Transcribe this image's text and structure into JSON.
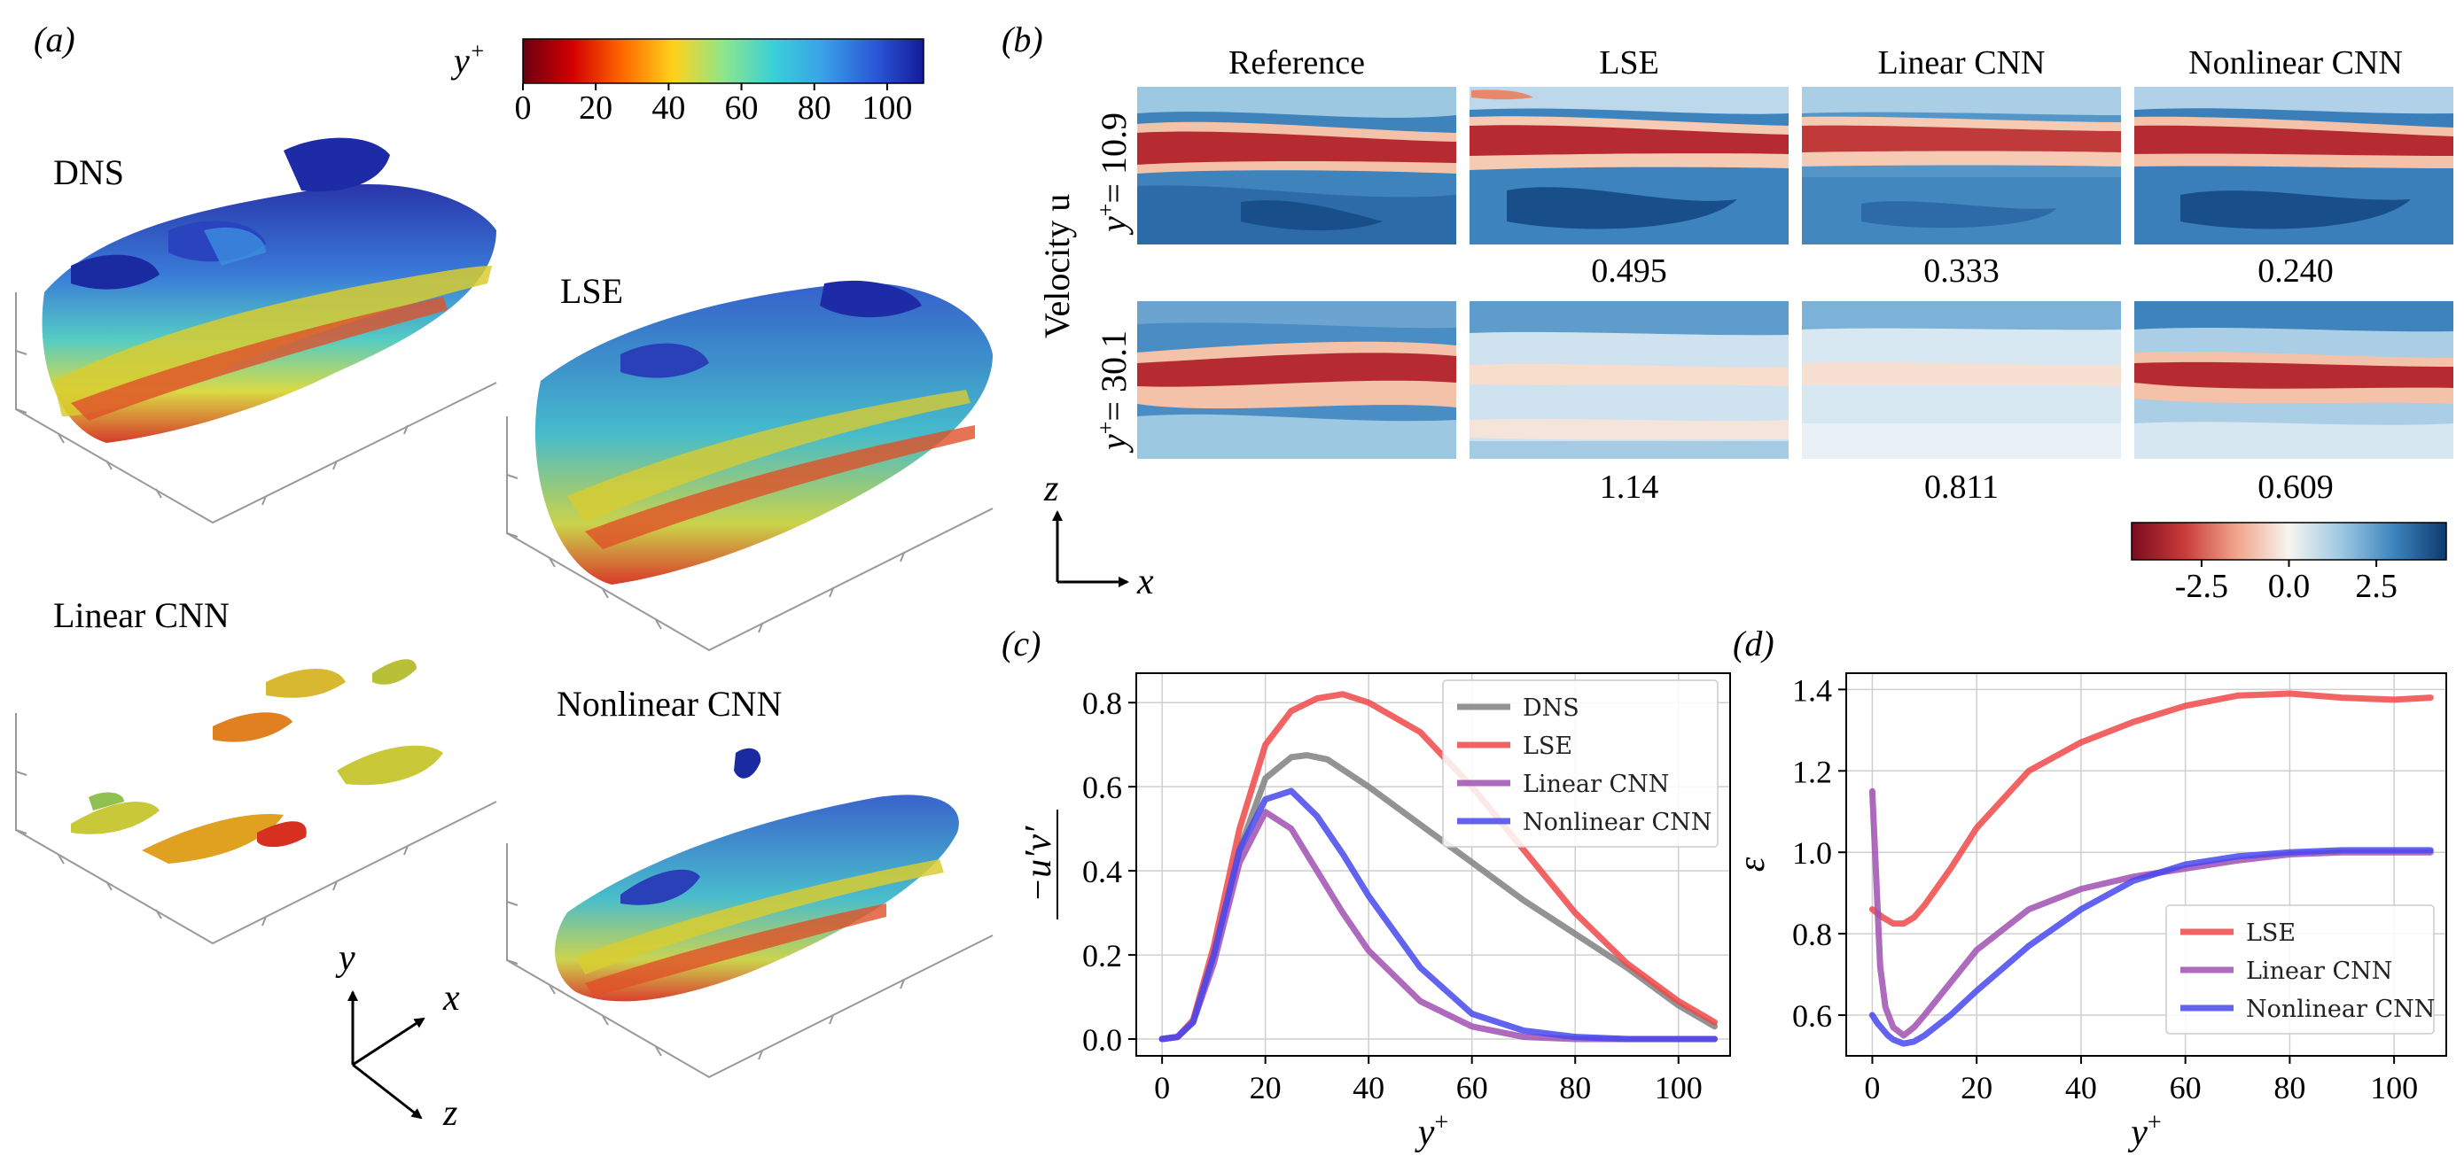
{
  "panel_a": {
    "label": "(a)",
    "colorbar": {
      "symbol": "y",
      "superscript": "+",
      "ticks": [
        "0",
        "20",
        "40",
        "60",
        "80",
        "100"
      ],
      "colors": [
        "#6a0010",
        "#d40000",
        "#ff6a00",
        "#ffd21a",
        "#8ee68a",
        "#3ad0d8",
        "#3aa0e8",
        "#2a5ad8",
        "#141a9a"
      ]
    },
    "views": [
      "DNS",
      "LSE",
      "Linear CNN",
      "Nonlinear CNN"
    ],
    "axes": {
      "y": "y",
      "x": "x",
      "z": "z"
    }
  },
  "panel_b": {
    "label": "(b)",
    "columns": [
      "Reference",
      "LSE",
      "Linear CNN",
      "Nonlinear CNN"
    ],
    "row_title": "Velocity u",
    "rows": [
      {
        "label_prefix": "y",
        "label_sup": "+",
        "label_value": "= 10.9",
        "errors": [
          "0.495",
          "0.333",
          "0.240"
        ]
      },
      {
        "label_prefix": "y",
        "label_sup": "+",
        "label_value": "= 30.1",
        "errors": [
          "1.14",
          "0.811",
          "0.609"
        ]
      }
    ],
    "axis_z": "z",
    "axis_x": "x",
    "colorbar": {
      "ticks": [
        "-2.5",
        "0.0",
        "2.5"
      ],
      "colors": [
        "#7a0c1e",
        "#c93a3a",
        "#f0a58a",
        "#f7f4f0",
        "#9cc8e2",
        "#3d84be",
        "#0c3a6e"
      ]
    }
  },
  "chart_data": [
    {
      "type": "line",
      "panel_label": "(c)",
      "xlabel": "y+",
      "ylabel": "-u'v' (overbar)",
      "xlim": [
        -5,
        110
      ],
      "ylim": [
        -0.04,
        0.87
      ],
      "xticks": [
        "0",
        "20",
        "40",
        "60",
        "80",
        "100"
      ],
      "yticks": [
        "0.0",
        "0.2",
        "0.4",
        "0.6",
        "0.8"
      ],
      "grid": true,
      "legend_position": "top-right",
      "series": [
        {
          "name": "DNS",
          "color": "#808080",
          "x": [
            0,
            3,
            6,
            10,
            15,
            20,
            25,
            28,
            32,
            40,
            50,
            60,
            70,
            80,
            90,
            100,
            107
          ],
          "y": [
            0,
            0.005,
            0.04,
            0.2,
            0.45,
            0.62,
            0.67,
            0.675,
            0.665,
            0.6,
            0.51,
            0.42,
            0.33,
            0.25,
            0.17,
            0.08,
            0.03
          ]
        },
        {
          "name": "LSE",
          "color": "#f04848",
          "x": [
            0,
            3,
            6,
            10,
            15,
            20,
            25,
            30,
            35,
            40,
            50,
            60,
            70,
            80,
            90,
            100,
            107
          ],
          "y": [
            0,
            0.005,
            0.045,
            0.22,
            0.5,
            0.7,
            0.78,
            0.81,
            0.82,
            0.8,
            0.73,
            0.6,
            0.45,
            0.3,
            0.18,
            0.09,
            0.04
          ]
        },
        {
          "name": "Linear CNN",
          "color": "#a050b0",
          "x": [
            0,
            3,
            6,
            10,
            15,
            20,
            25,
            30,
            35,
            40,
            50,
            60,
            70,
            80,
            90,
            100,
            107
          ],
          "y": [
            0,
            0.005,
            0.04,
            0.18,
            0.42,
            0.54,
            0.5,
            0.4,
            0.3,
            0.21,
            0.09,
            0.03,
            0.005,
            0,
            0,
            0,
            0
          ]
        },
        {
          "name": "Nonlinear CNN",
          "color": "#4848f0",
          "x": [
            0,
            3,
            6,
            10,
            15,
            20,
            25,
            30,
            35,
            40,
            50,
            60,
            70,
            80,
            90,
            100,
            107
          ],
          "y": [
            0,
            0.005,
            0.04,
            0.2,
            0.45,
            0.57,
            0.59,
            0.53,
            0.44,
            0.34,
            0.17,
            0.06,
            0.02,
            0.005,
            0,
            0,
            0
          ]
        }
      ]
    },
    {
      "type": "line",
      "panel_label": "(d)",
      "xlabel": "y+",
      "ylabel": "ε",
      "xlim": [
        -5,
        110
      ],
      "ylim": [
        0.5,
        1.44
      ],
      "xticks": [
        "0",
        "20",
        "40",
        "60",
        "80",
        "100"
      ],
      "yticks": [
        "0.6",
        "0.8",
        "1.0",
        "1.2",
        "1.4"
      ],
      "grid": true,
      "legend_position": "lower-right",
      "series": [
        {
          "name": "LSE",
          "color": "#f04848",
          "x": [
            0,
            2,
            4,
            6,
            8,
            10,
            15,
            20,
            30,
            40,
            50,
            60,
            70,
            80,
            90,
            100,
            107
          ],
          "y": [
            0.86,
            0.84,
            0.825,
            0.825,
            0.84,
            0.87,
            0.96,
            1.06,
            1.2,
            1.27,
            1.32,
            1.36,
            1.385,
            1.39,
            1.38,
            1.375,
            1.38
          ]
        },
        {
          "name": "Linear CNN",
          "color": "#a050b0",
          "x": [
            0,
            0.7,
            1.5,
            2.5,
            4,
            6,
            8,
            10,
            15,
            20,
            30,
            40,
            50,
            60,
            70,
            80,
            90,
            100,
            107
          ],
          "y": [
            1.15,
            0.95,
            0.72,
            0.62,
            0.57,
            0.55,
            0.57,
            0.6,
            0.68,
            0.76,
            0.86,
            0.91,
            0.94,
            0.96,
            0.98,
            0.995,
            1.0,
            1.0,
            1.0
          ]
        },
        {
          "name": "Nonlinear CNN",
          "color": "#4848f0",
          "x": [
            0,
            1,
            2,
            3,
            4,
            6,
            8,
            10,
            15,
            20,
            30,
            40,
            50,
            60,
            70,
            80,
            90,
            100,
            107
          ],
          "y": [
            0.6,
            0.58,
            0.565,
            0.55,
            0.54,
            0.53,
            0.535,
            0.55,
            0.6,
            0.66,
            0.77,
            0.86,
            0.93,
            0.97,
            0.99,
            1.0,
            1.005,
            1.005,
            1.005
          ]
        }
      ]
    }
  ]
}
